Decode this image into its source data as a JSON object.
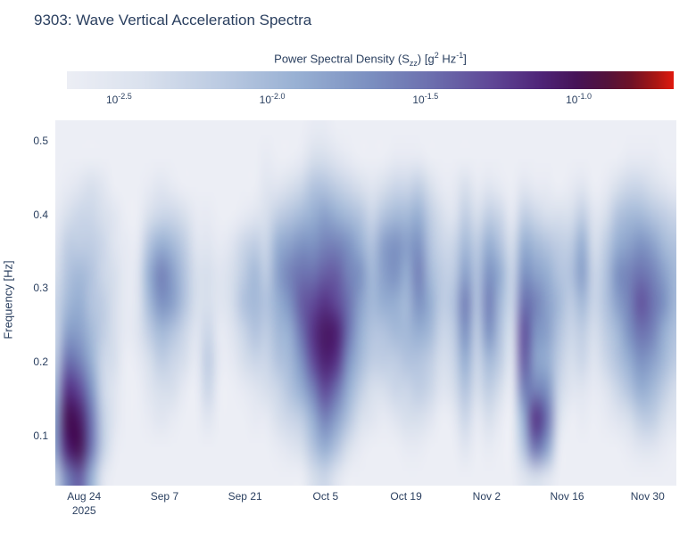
{
  "title": "9303: Wave Vertical Acceleration Spectra",
  "colorbar": {
    "title_pre": "Power Spectral Density (S",
    "title_sub": "zz",
    "title_mid": ") [g",
    "title_sup1": "2",
    "title_mid2": " Hz",
    "title_sup2": "-1",
    "title_post": "]",
    "ticks": [
      {
        "base": "10",
        "exp": "-2.5",
        "value": -2.5
      },
      {
        "base": "10",
        "exp": "-2.0",
        "value": -2.0
      },
      {
        "base": "10",
        "exp": "-1.5",
        "value": -1.5
      },
      {
        "base": "10",
        "exp": "-1.0",
        "value": -1.0
      }
    ]
  },
  "chart_data": {
    "type": "heatmap",
    "title": "9303: Wave Vertical Acceleration Spectra",
    "xlabel": "",
    "ylabel": "Frequency [Hz]",
    "colorbar_title": "Power Spectral Density (Szz) [g2 Hz-1]",
    "units": "log10 of g^2/Hz",
    "xlim": [
      "2025-08-19",
      "2025-12-05"
    ],
    "ylim": [
      0.032,
      0.528
    ],
    "zmin_log10": -2.67,
    "zmax_log10": -0.69,
    "colorscale": [
      [
        0.0,
        "#eceef5"
      ],
      [
        0.12,
        "#dbe2ee"
      ],
      [
        0.25,
        "#bccbe2"
      ],
      [
        0.38,
        "#98b0d3"
      ],
      [
        0.5,
        "#7b8fc0"
      ],
      [
        0.6,
        "#6c6fae"
      ],
      [
        0.7,
        "#5f4796"
      ],
      [
        0.78,
        "#4f2478"
      ],
      [
        0.84,
        "#461357"
      ],
      [
        0.89,
        "#53123b"
      ],
      [
        0.93,
        "#6f1126"
      ],
      [
        0.97,
        "#a81613"
      ],
      [
        1.0,
        "#e0190e"
      ]
    ],
    "xticks": [
      {
        "label": "Aug 24",
        "sublabel": "2025",
        "date": "2025-08-24"
      },
      {
        "label": "Sep 7",
        "date": "2025-09-07"
      },
      {
        "label": "Sep 21",
        "date": "2025-09-21"
      },
      {
        "label": "Oct 5",
        "date": "2025-10-05"
      },
      {
        "label": "Oct 19",
        "date": "2025-10-19"
      },
      {
        "label": "Nov 2",
        "date": "2025-11-02"
      },
      {
        "label": "Nov 16",
        "date": "2025-11-16"
      },
      {
        "label": "Nov 30",
        "date": "2025-11-30"
      }
    ],
    "yticks": [
      {
        "label": "0.5",
        "value": 0.5
      },
      {
        "label": "0.4",
        "value": 0.4
      },
      {
        "label": "0.3",
        "value": 0.3
      },
      {
        "label": "0.2",
        "value": 0.2
      },
      {
        "label": "0.1",
        "value": 0.1
      }
    ],
    "y": [
      0.05,
      0.09,
      0.13,
      0.17,
      0.21,
      0.25,
      0.29,
      0.33,
      0.37,
      0.41,
      0.45,
      0.49,
      0.53
    ],
    "x": [
      "2025-08-19",
      "2025-08-21",
      "2025-08-23",
      "2025-08-25",
      "2025-08-27",
      "2025-08-29",
      "2025-08-31",
      "2025-09-02",
      "2025-09-04",
      "2025-09-06",
      "2025-09-08",
      "2025-09-10",
      "2025-09-12",
      "2025-09-14",
      "2025-09-16",
      "2025-09-18",
      "2025-09-20",
      "2025-09-22",
      "2025-09-24",
      "2025-09-26",
      "2025-09-28",
      "2025-09-30",
      "2025-10-02",
      "2025-10-04",
      "2025-10-06",
      "2025-10-08",
      "2025-10-10",
      "2025-10-12",
      "2025-10-14",
      "2025-10-16",
      "2025-10-18",
      "2025-10-20",
      "2025-10-22",
      "2025-10-24",
      "2025-10-26",
      "2025-10-28",
      "2025-10-30",
      "2025-11-01",
      "2025-11-03",
      "2025-11-05",
      "2025-11-07",
      "2025-11-09",
      "2025-11-11",
      "2025-11-13",
      "2025-11-15",
      "2025-11-17",
      "2025-11-19",
      "2025-11-21",
      "2025-11-23",
      "2025-11-25",
      "2025-11-27",
      "2025-11-29",
      "2025-12-01",
      "2025-12-03"
    ],
    "z_orientation": "columns (one spectrum per x date, frequencies low to high)",
    "z_log10": [
      [
        -2.2,
        -1.8,
        -1.8,
        -2.0,
        -2.2,
        -2.3,
        -2.3,
        -2.4,
        -2.5,
        -2.6,
        -2.7,
        -2.9,
        -3.0
      ],
      [
        -1.6,
        -1.1,
        -1.0,
        -1.2,
        -1.5,
        -1.8,
        -2.0,
        -2.1,
        -2.2,
        -2.4,
        -2.6,
        -2.8,
        -3.0
      ],
      [
        -1.4,
        -1.0,
        -1.05,
        -1.3,
        -1.6,
        -1.8,
        -1.9,
        -2.0,
        -2.2,
        -2.3,
        -2.5,
        -2.8,
        -2.9
      ],
      [
        -1.9,
        -1.5,
        -1.5,
        -1.7,
        -1.9,
        -2.0,
        -2.1,
        -2.1,
        -2.2,
        -2.3,
        -2.4,
        -2.7,
        -2.9
      ],
      [
        -2.5,
        -2.2,
        -2.2,
        -2.3,
        -2.3,
        -2.2,
        -2.2,
        -2.3,
        -2.3,
        -2.4,
        -2.5,
        -2.8,
        -3.0
      ],
      [
        -2.8,
        -2.6,
        -2.5,
        -2.5,
        -2.4,
        -2.4,
        -2.4,
        -2.4,
        -2.5,
        -2.5,
        -2.7,
        -2.9,
        -3.0
      ],
      [
        -3.0,
        -2.9,
        -2.8,
        -2.7,
        -2.7,
        -2.6,
        -2.6,
        -2.6,
        -2.6,
        -2.7,
        -2.8,
        -2.9,
        -3.0
      ],
      [
        -3.0,
        -2.9,
        -2.8,
        -2.7,
        -2.6,
        -2.5,
        -2.5,
        -2.5,
        -2.6,
        -2.7,
        -2.8,
        -2.9,
        -3.0
      ],
      [
        -2.9,
        -2.8,
        -2.6,
        -2.5,
        -2.4,
        -2.2,
        -2.0,
        -1.9,
        -2.1,
        -2.4,
        -2.6,
        -2.8,
        -3.0
      ],
      [
        -2.9,
        -2.7,
        -2.5,
        -2.4,
        -2.2,
        -2.0,
        -1.7,
        -1.6,
        -1.9,
        -2.3,
        -2.5,
        -2.8,
        -3.0
      ],
      [
        -2.9,
        -2.8,
        -2.6,
        -2.4,
        -2.3,
        -2.1,
        -1.8,
        -1.8,
        -2.0,
        -2.3,
        -2.6,
        -2.8,
        -3.0
      ],
      [
        -3.0,
        -2.8,
        -2.7,
        -2.6,
        -2.4,
        -2.3,
        -2.1,
        -2.1,
        -2.2,
        -2.4,
        -2.7,
        -2.9,
        -3.0
      ],
      [
        -3.0,
        -2.9,
        -2.8,
        -2.7,
        -2.6,
        -2.5,
        -2.4,
        -2.4,
        -2.5,
        -2.6,
        -2.8,
        -2.9,
        -3.0
      ],
      [
        -2.9,
        -2.7,
        -2.5,
        -2.3,
        -2.2,
        -2.3,
        -2.4,
        -2.4,
        -2.5,
        -2.6,
        -2.8,
        -2.9,
        -3.0
      ],
      [
        -3.0,
        -2.9,
        -2.8,
        -2.7,
        -2.6,
        -2.6,
        -2.5,
        -2.5,
        -2.6,
        -2.7,
        -2.8,
        -2.9,
        -3.0
      ],
      [
        -3.0,
        -2.9,
        -2.8,
        -2.7,
        -2.6,
        -2.5,
        -2.4,
        -2.4,
        -2.5,
        -2.7,
        -2.8,
        -2.9,
        -3.0
      ],
      [
        -2.9,
        -2.8,
        -2.7,
        -2.6,
        -2.4,
        -2.3,
        -2.1,
        -2.2,
        -2.3,
        -2.6,
        -2.8,
        -2.9,
        -3.0
      ],
      [
        -2.9,
        -2.8,
        -2.6,
        -2.5,
        -2.3,
        -2.1,
        -2.0,
        -2.0,
        -2.2,
        -2.5,
        -2.7,
        -2.9,
        -3.0
      ],
      [
        -2.9,
        -2.7,
        -2.6,
        -2.4,
        -2.3,
        -2.2,
        -2.1,
        -2.2,
        -2.3,
        -2.4,
        -2.5,
        -2.6,
        -2.8
      ],
      [
        -2.8,
        -2.6,
        -2.4,
        -2.3,
        -2.1,
        -2.0,
        -1.9,
        -1.8,
        -1.9,
        -2.2,
        -2.5,
        -2.7,
        -2.9
      ],
      [
        -2.8,
        -2.5,
        -2.3,
        -2.1,
        -2.0,
        -1.9,
        -1.7,
        -1.6,
        -1.8,
        -2.1,
        -2.4,
        -2.7,
        -2.9
      ],
      [
        -2.7,
        -2.4,
        -2.2,
        -1.9,
        -1.7,
        -1.5,
        -1.4,
        -1.5,
        -1.7,
        -2.0,
        -2.3,
        -2.6,
        -2.8
      ],
      [
        -2.4,
        -2.1,
        -1.9,
        -1.6,
        -1.3,
        -1.2,
        -1.3,
        -1.5,
        -1.7,
        -1.9,
        -2.1,
        -2.4,
        -2.6
      ],
      [
        -2.3,
        -1.9,
        -1.6,
        -1.3,
        -1.1,
        -1.05,
        -1.2,
        -1.4,
        -1.6,
        -1.8,
        -2.1,
        -2.4,
        -2.6
      ],
      [
        -2.5,
        -2.1,
        -1.8,
        -1.5,
        -1.2,
        -1.1,
        -1.3,
        -1.4,
        -1.6,
        -1.9,
        -2.2,
        -2.5,
        -2.7
      ],
      [
        -2.7,
        -2.4,
        -2.1,
        -1.9,
        -1.7,
        -1.5,
        -1.5,
        -1.6,
        -1.7,
        -2.0,
        -2.3,
        -2.6,
        -2.8
      ],
      [
        -2.8,
        -2.6,
        -2.4,
        -2.2,
        -2.0,
        -1.9,
        -1.8,
        -1.7,
        -1.9,
        -2.1,
        -2.4,
        -2.7,
        -2.9
      ],
      [
        -2.9,
        -2.7,
        -2.5,
        -2.4,
        -2.2,
        -2.1,
        -2.0,
        -2.0,
        -2.1,
        -2.3,
        -2.5,
        -2.8,
        -3.0
      ],
      [
        -2.9,
        -2.7,
        -2.6,
        -2.4,
        -2.2,
        -2.1,
        -1.9,
        -1.8,
        -1.8,
        -2.1,
        -2.4,
        -2.7,
        -2.9
      ],
      [
        -2.9,
        -2.7,
        -2.5,
        -2.3,
        -2.2,
        -2.0,
        -1.9,
        -1.7,
        -1.7,
        -2.0,
        -2.3,
        -2.6,
        -2.9
      ],
      [
        -2.8,
        -2.6,
        -2.4,
        -2.3,
        -2.1,
        -2.0,
        -2.0,
        -1.9,
        -1.8,
        -2.0,
        -2.3,
        -2.6,
        -2.9
      ],
      [
        -2.8,
        -2.6,
        -2.4,
        -2.2,
        -2.1,
        -1.9,
        -1.7,
        -1.6,
        -1.7,
        -1.9,
        -2.2,
        -2.6,
        -2.9
      ],
      [
        -2.9,
        -2.7,
        -2.5,
        -2.3,
        -2.2,
        -2.0,
        -1.9,
        -2.0,
        -2.1,
        -2.2,
        -2.4,
        -2.7,
        -2.9
      ],
      [
        -3.0,
        -2.8,
        -2.7,
        -2.5,
        -2.4,
        -2.3,
        -2.2,
        -2.2,
        -2.3,
        -2.4,
        -2.6,
        -2.8,
        -3.0
      ],
      [
        -2.9,
        -2.8,
        -2.6,
        -2.4,
        -2.3,
        -2.2,
        -2.1,
        -2.2,
        -2.3,
        -2.5,
        -2.6,
        -2.8,
        -3.0
      ],
      [
        -2.7,
        -2.5,
        -2.3,
        -2.1,
        -1.9,
        -1.7,
        -1.6,
        -1.8,
        -2.0,
        -2.2,
        -2.4,
        -2.7,
        -2.9
      ],
      [
        -2.9,
        -2.7,
        -2.6,
        -2.4,
        -2.3,
        -2.2,
        -2.1,
        -2.1,
        -2.2,
        -2.4,
        -2.6,
        -2.8,
        -3.0
      ],
      [
        -2.8,
        -2.6,
        -2.4,
        -2.2,
        -2.0,
        -1.7,
        -1.6,
        -1.7,
        -1.9,
        -2.2,
        -2.5,
        -2.8,
        -3.0
      ],
      [
        -2.9,
        -2.7,
        -2.6,
        -2.4,
        -2.2,
        -2.1,
        -2.0,
        -1.9,
        -2.1,
        -2.3,
        -2.6,
        -2.8,
        -3.0
      ],
      [
        -3.0,
        -2.9,
        -2.8,
        -2.6,
        -2.5,
        -2.4,
        -2.3,
        -2.3,
        -2.4,
        -2.6,
        -2.8,
        -2.9,
        -3.0
      ],
      [
        -2.5,
        -2.1,
        -1.9,
        -1.6,
        -1.4,
        -1.35,
        -1.5,
        -1.7,
        -1.9,
        -2.2,
        -2.5,
        -2.8,
        -3.0
      ],
      [
        -2.4,
        -1.5,
        -1.2,
        -1.6,
        -1.8,
        -1.7,
        -1.6,
        -1.8,
        -2.0,
        -2.3,
        -2.6,
        -2.8,
        -3.0
      ],
      [
        -2.5,
        -1.8,
        -1.5,
        -1.7,
        -1.9,
        -1.8,
        -1.8,
        -1.9,
        -2.1,
        -2.4,
        -2.6,
        -2.9,
        -3.0
      ],
      [
        -2.9,
        -2.6,
        -2.4,
        -2.3,
        -2.2,
        -2.1,
        -2.0,
        -2.1,
        -2.2,
        -2.4,
        -2.7,
        -2.9,
        -3.0
      ],
      [
        -3.0,
        -2.8,
        -2.7,
        -2.5,
        -2.4,
        -2.3,
        -2.2,
        -2.1,
        -2.2,
        -2.4,
        -2.6,
        -2.8,
        -3.0
      ],
      [
        -2.9,
        -2.8,
        -2.6,
        -2.5,
        -2.3,
        -2.2,
        -2.0,
        -1.8,
        -1.9,
        -2.2,
        -2.5,
        -2.8,
        -3.0
      ],
      [
        -3.0,
        -2.9,
        -2.8,
        -2.6,
        -2.5,
        -2.4,
        -2.3,
        -2.3,
        -2.4,
        -2.5,
        -2.7,
        -2.9,
        -3.0
      ],
      [
        -2.9,
        -2.8,
        -2.6,
        -2.5,
        -2.3,
        -2.2,
        -2.1,
        -2.1,
        -2.2,
        -2.4,
        -2.6,
        -2.8,
        -3.0
      ],
      [
        -2.9,
        -2.7,
        -2.5,
        -2.3,
        -2.1,
        -2.0,
        -1.8,
        -1.7,
        -1.9,
        -2.1,
        -2.4,
        -2.7,
        -2.9
      ],
      [
        -2.8,
        -2.6,
        -2.4,
        -2.1,
        -1.9,
        -1.7,
        -1.6,
        -1.6,
        -1.8,
        -2.0,
        -2.3,
        -2.6,
        -2.8
      ],
      [
        -2.8,
        -2.5,
        -2.2,
        -1.9,
        -1.7,
        -1.5,
        -1.35,
        -1.5,
        -1.7,
        -2.0,
        -2.3,
        -2.6,
        -2.8
      ],
      [
        -2.7,
        -2.5,
        -2.2,
        -2.0,
        -1.8,
        -1.6,
        -1.5,
        -1.6,
        -1.8,
        -2.1,
        -2.4,
        -2.6,
        -2.9
      ],
      [
        -2.8,
        -2.6,
        -2.4,
        -2.2,
        -2.0,
        -1.9,
        -1.7,
        -1.8,
        -2.0,
        -2.2,
        -2.5,
        -2.7,
        -2.9
      ],
      [
        -2.9,
        -2.7,
        -2.5,
        -2.4,
        -2.2,
        -2.1,
        -2.0,
        -2.0,
        -2.1,
        -2.3,
        -2.6,
        -2.8,
        -3.0
      ]
    ]
  }
}
